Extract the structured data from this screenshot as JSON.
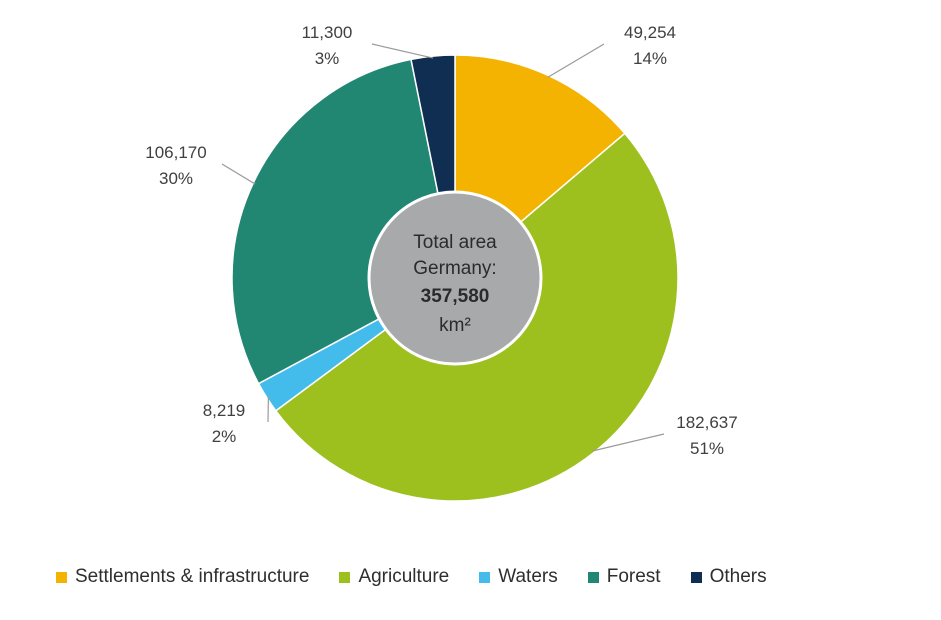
{
  "chart_data": {
    "type": "pie",
    "donut": true,
    "center": {
      "line1": "Total area",
      "line2": "Germany:",
      "value": "357,580",
      "unit": "km²"
    },
    "slices": [
      {
        "name": "Settlements & infrastructure",
        "value": 49254,
        "value_label": "49,254",
        "percent_label": "14%",
        "color": "#F5B301"
      },
      {
        "name": "Agriculture",
        "value": 182637,
        "value_label": "182,637",
        "percent_label": "51%",
        "color": "#9DC01E"
      },
      {
        "name": "Waters",
        "value": 8219,
        "value_label": "8,219",
        "percent_label": "2%",
        "color": "#44BCEB"
      },
      {
        "name": "Forest",
        "value": 106170,
        "value_label": "106,170",
        "percent_label": "30%",
        "color": "#218773"
      },
      {
        "name": "Others",
        "value": 11300,
        "value_label": "11,300",
        "percent_label": "3%",
        "color": "#102E52"
      }
    ],
    "center_circle_color": "#A7A9AB",
    "legend_position": "bottom"
  }
}
